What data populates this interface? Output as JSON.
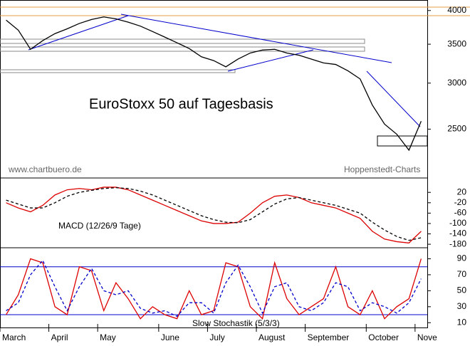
{
  "chart_data": [
    {
      "type": "line",
      "title": "EuroStoxx 50 auf Tagesbasis",
      "source_left": "www.chartbuero.de",
      "source_right": "Hoppenstedt-Charts",
      "log_scale": true,
      "ylim": [
        2060,
        4170
      ],
      "yticks": [
        4000,
        3500,
        3000,
        2500
      ],
      "series": [
        {
          "color": "#000000",
          "values": [
            3850,
            3700,
            3430,
            3550,
            3650,
            3720,
            3800,
            3860,
            3900,
            3870,
            3820,
            3760,
            3680,
            3600,
            3520,
            3440,
            3330,
            3280,
            3200,
            3300,
            3380,
            3420,
            3430,
            3380,
            3350,
            3300,
            3250,
            3230,
            3150,
            3050,
            2750,
            2550,
            2450,
            2300,
            2580
          ]
        }
      ]
    },
    {
      "type": "line",
      "title": "MACD (12/26/9 Tage)",
      "ylim": [
        -188,
        70
      ],
      "yticks": [
        20,
        -20,
        -60,
        -100,
        -140,
        -180
      ],
      "series": [
        {
          "color": "#dd0000",
          "values": [
            -20,
            -40,
            -55,
            -30,
            10,
            30,
            35,
            30,
            40,
            40,
            30,
            10,
            -10,
            -30,
            -50,
            -70,
            -90,
            -100,
            -100,
            -95,
            -60,
            -20,
            5,
            10,
            0,
            -20,
            -30,
            -40,
            -60,
            -80,
            -130,
            -160,
            -170,
            -175,
            -130
          ]
        },
        {
          "color": "#000000",
          "dashed": true,
          "values": [
            -10,
            -25,
            -40,
            -40,
            -20,
            5,
            20,
            28,
            35,
            38,
            35,
            25,
            10,
            -10,
            -30,
            -50,
            -70,
            -85,
            -95,
            -97,
            -85,
            -55,
            -25,
            -5,
            0,
            -10,
            -20,
            -30,
            -45,
            -60,
            -95,
            -125,
            -150,
            -165,
            -155
          ]
        }
      ]
    },
    {
      "type": "line",
      "title": "Slow Stochastik (5/3/3)",
      "ylim": [
        4,
        102
      ],
      "yticks": [
        90,
        70,
        50,
        30,
        10
      ],
      "levels": [
        80,
        20
      ],
      "level_color": "#0000cc",
      "categories": [
        "March",
        null,
        null,
        null,
        "April",
        null,
        null,
        null,
        "May",
        null,
        null,
        null,
        null,
        "June",
        null,
        null,
        null,
        "July",
        null,
        null,
        null,
        "August",
        null,
        null,
        null,
        "September",
        null,
        null,
        null,
        null,
        "October",
        null,
        null,
        null,
        "Nove"
      ],
      "series": [
        {
          "color": "#dd0000",
          "values": [
            20,
            45,
            90,
            85,
            30,
            20,
            80,
            75,
            25,
            60,
            40,
            15,
            30,
            20,
            15,
            50,
            20,
            25,
            85,
            80,
            30,
            15,
            85,
            40,
            20,
            30,
            40,
            80,
            30,
            20,
            50,
            15,
            30,
            40,
            90
          ]
        },
        {
          "color": "#0000cc",
          "dashed": true,
          "values": [
            25,
            35,
            70,
            88,
            55,
            25,
            55,
            78,
            50,
            45,
            50,
            28,
            22,
            25,
            18,
            35,
            35,
            22,
            60,
            82,
            55,
            22,
            55,
            60,
            30,
            25,
            35,
            60,
            55,
            25,
            35,
            30,
            22,
            35,
            65
          ]
        }
      ]
    }
  ]
}
